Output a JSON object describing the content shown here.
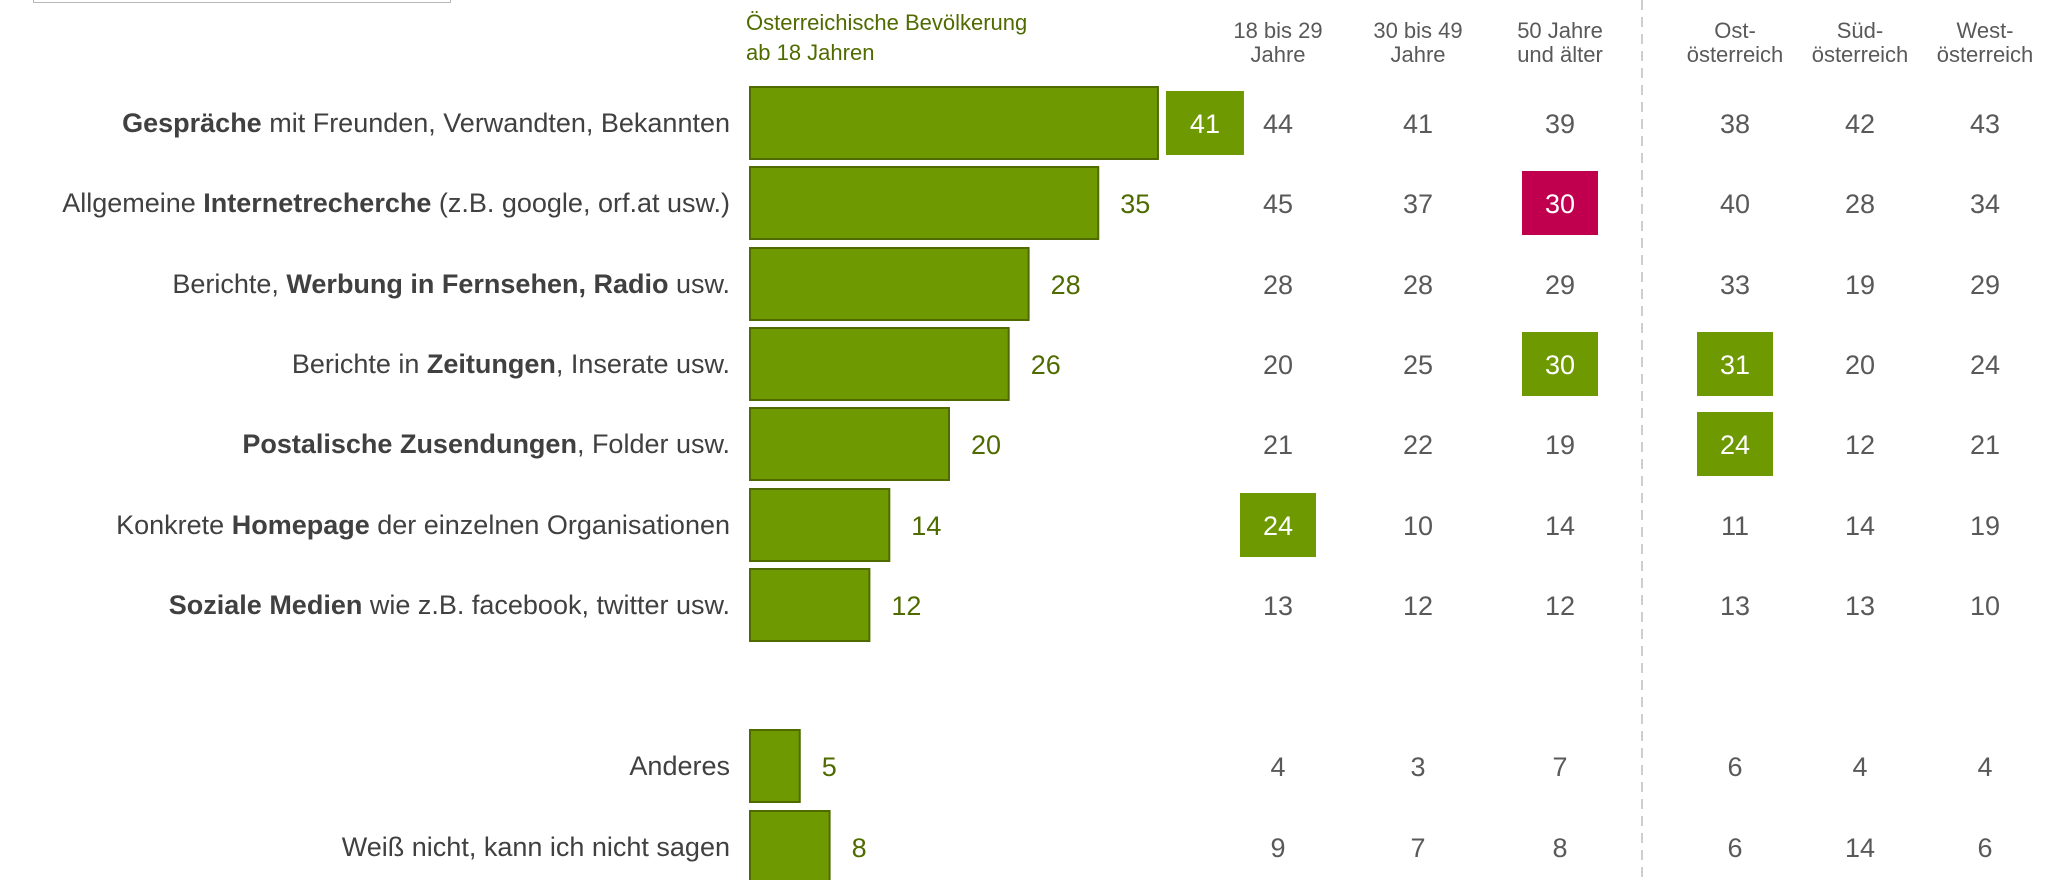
{
  "chart_data": {
    "type": "bar",
    "orientation": "horizontal",
    "main_header": [
      "Österreichische Bevölkerung",
      "ab 18 Jahren"
    ],
    "rows": [
      {
        "parts": [
          {
            "t": "Gespräche",
            "b": true
          },
          {
            "t": " mit Freunden, Verwandten, Bekannten",
            "b": false
          }
        ],
        "value": 41,
        "value_highlighted": true,
        "sub": [
          44,
          41,
          39,
          38,
          42,
          43
        ]
      },
      {
        "parts": [
          {
            "t": "Allgemeine ",
            "b": false
          },
          {
            "t": "Internetrecherche",
            "b": true
          },
          {
            "t": " (z.B. google, orf.at usw.)",
            "b": false
          }
        ],
        "value": 35,
        "sub": [
          45,
          37,
          30,
          40,
          28,
          34
        ]
      },
      {
        "parts": [
          {
            "t": "Berichte, ",
            "b": false
          },
          {
            "t": "Werbung in Fernsehen, Radio",
            "b": true
          },
          {
            "t": " usw.",
            "b": false
          }
        ],
        "value": 28,
        "sub": [
          28,
          28,
          29,
          33,
          19,
          29
        ]
      },
      {
        "parts": [
          {
            "t": "Berichte in ",
            "b": false
          },
          {
            "t": "Zeitungen",
            "b": true
          },
          {
            "t": ", Inserate usw.",
            "b": false
          }
        ],
        "value": 26,
        "sub": [
          20,
          25,
          30,
          31,
          20,
          24
        ]
      },
      {
        "parts": [
          {
            "t": "Postalische Zusendungen",
            "b": true
          },
          {
            "t": ", Folder usw.",
            "b": false
          }
        ],
        "value": 20,
        "sub": [
          21,
          22,
          19,
          24,
          12,
          21
        ]
      },
      {
        "parts": [
          {
            "t": "Konkrete ",
            "b": false
          },
          {
            "t": "Homepage",
            "b": true
          },
          {
            "t": " der einzelnen Organisationen",
            "b": false
          }
        ],
        "value": 14,
        "sub": [
          24,
          10,
          14,
          11,
          14,
          19
        ]
      },
      {
        "parts": [
          {
            "t": "Soziale Medien",
            "b": true
          },
          {
            "t": " wie z.B. facebook, twitter usw.",
            "b": false
          }
        ],
        "value": 12,
        "sub": [
          13,
          12,
          12,
          13,
          13,
          10
        ]
      },
      {
        "parts": [
          {
            "t": "Anderes",
            "b": false
          }
        ],
        "value": 5,
        "sub": [
          4,
          3,
          7,
          6,
          4,
          4
        ]
      },
      {
        "parts": [
          {
            "t": "Weiß nicht, kann ich nicht sagen",
            "b": false
          }
        ],
        "value": 8,
        "sub": [
          9,
          7,
          8,
          6,
          14,
          6
        ]
      }
    ],
    "columns": [
      {
        "label": [
          "18 bis 29",
          "Jahre"
        ]
      },
      {
        "label": [
          "30 bis 49",
          "Jahre"
        ]
      },
      {
        "label": [
          "50 Jahre",
          "und älter"
        ]
      },
      {
        "label": [
          "Ost-",
          "österreich"
        ]
      },
      {
        "label": [
          "Süd-",
          "österreich"
        ]
      },
      {
        "label": [
          "West-",
          "österreich"
        ]
      }
    ],
    "highlights": [
      {
        "row": 1,
        "col": 2,
        "kind": "low"
      },
      {
        "row": 3,
        "col": 2,
        "kind": "high"
      },
      {
        "row": 3,
        "col": 3,
        "kind": "high"
      },
      {
        "row": 4,
        "col": 3,
        "kind": "high"
      },
      {
        "row": 5,
        "col": 0,
        "kind": "high"
      }
    ],
    "xlim": [
      0,
      41
    ],
    "colors": {
      "bar": "#6e9900",
      "bar_border": "#4f6b00",
      "high": "#6e9900",
      "low": "#c0004f",
      "value_text": "#4f6b00"
    }
  }
}
